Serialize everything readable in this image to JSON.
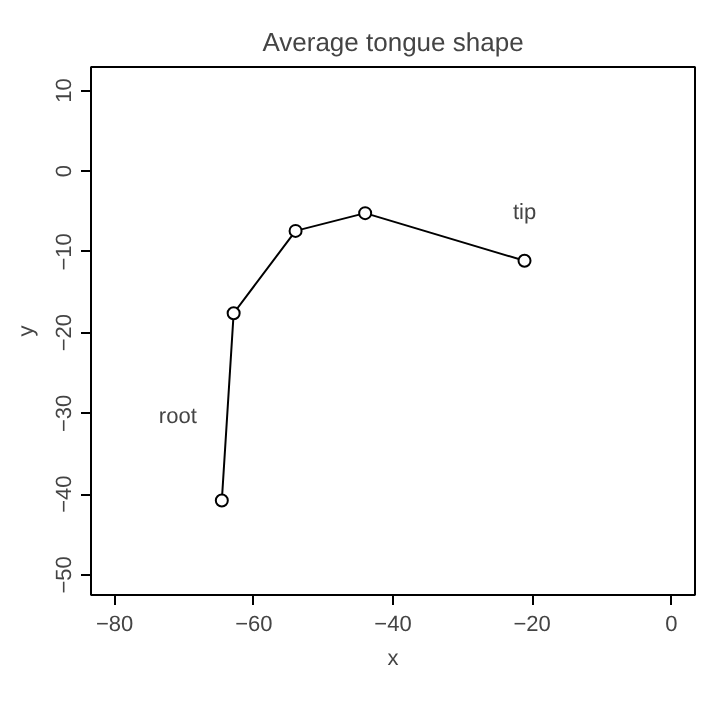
{
  "chart_data": {
    "type": "line",
    "title": "Average tongue shape",
    "xlabel": "x",
    "ylabel": "y",
    "x": [
      -64.6,
      -62.9,
      -54.0,
      -44.0,
      -21.1
    ],
    "series": [
      {
        "color": "#000000",
        "values": [
          -40.8,
          -17.6,
          -7.4,
          -5.2,
          -11.1
        ]
      }
    ],
    "marker": "circle",
    "grid": false,
    "xlim": [
      -83.4,
      3.4
    ],
    "ylim": [
      -52.5,
      12.9
    ],
    "xticks": [
      -80,
      -60,
      -40,
      -20,
      0
    ],
    "yticks": [
      -50,
      -40,
      -30,
      -20,
      -10,
      0,
      10
    ],
    "annotations": [
      "root",
      "tip"
    ]
  }
}
